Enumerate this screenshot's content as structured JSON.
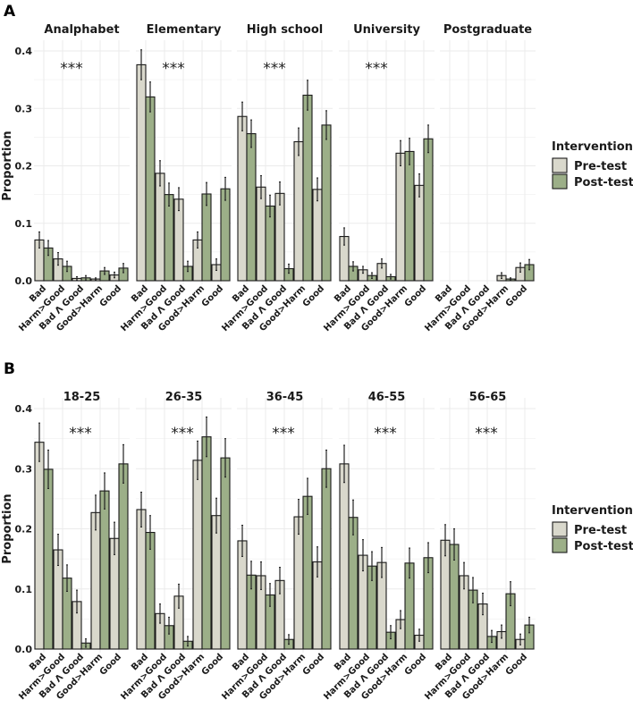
{
  "chart_data": [
    {
      "type": "bar",
      "tag": "A",
      "ylabel": "Proportion",
      "ylim": [
        0,
        0.4
      ],
      "yticks": [
        "0.0",
        "0.1",
        "0.2",
        "0.3",
        "0.4"
      ],
      "categories": [
        "Bad",
        "Harm>Good",
        "Bad Λ Good",
        "Good>Harm",
        "Good"
      ],
      "grid": true,
      "legend": {
        "title": "Intervention",
        "placement": "right",
        "entries": [
          "Pre-test",
          "Post-test"
        ]
      },
      "facets": [
        {
          "title": "Analphabet",
          "annotation": "***",
          "pre": [
            0.071,
            0.038,
            0.004,
            0.003,
            0.01
          ],
          "post": [
            0.057,
            0.025,
            0.005,
            0.017,
            0.022
          ],
          "pre_err": [
            0.014,
            0.011,
            0.003,
            0.002,
            0.005
          ],
          "post_err": [
            0.013,
            0.009,
            0.004,
            0.006,
            0.008
          ]
        },
        {
          "title": "Elementary",
          "annotation": "***",
          "pre": [
            0.376,
            0.187,
            0.142,
            0.071,
            0.028
          ],
          "post": [
            0.32,
            0.15,
            0.025,
            0.151,
            0.16
          ],
          "pre_err": [
            0.026,
            0.022,
            0.02,
            0.014,
            0.01
          ],
          "post_err": [
            0.026,
            0.02,
            0.009,
            0.02,
            0.02
          ]
        },
        {
          "title": "High school",
          "annotation": "***",
          "pre": [
            0.286,
            0.163,
            0.152,
            0.242,
            0.159
          ],
          "post": [
            0.256,
            0.13,
            0.021,
            0.323,
            0.271
          ],
          "pre_err": [
            0.025,
            0.02,
            0.02,
            0.024,
            0.02
          ],
          "post_err": [
            0.024,
            0.019,
            0.008,
            0.026,
            0.025
          ]
        },
        {
          "title": "University",
          "annotation": "***",
          "pre": [
            0.077,
            0.019,
            0.03,
            0.222,
            0.166
          ],
          "post": [
            0.025,
            0.009,
            0.007,
            0.225,
            0.247
          ],
          "pre_err": [
            0.015,
            0.006,
            0.008,
            0.022,
            0.02
          ],
          "post_err": [
            0.008,
            0.005,
            0.004,
            0.023,
            0.024
          ]
        },
        {
          "title": "Postgraduate",
          "annotation": "",
          "pre": [
            null,
            null,
            null,
            0.009,
            0.023
          ],
          "post": [
            null,
            null,
            null,
            0.003,
            0.028
          ],
          "pre_err": [
            null,
            null,
            null,
            0.005,
            0.008
          ],
          "post_err": [
            null,
            null,
            null,
            0.002,
            0.009
          ]
        }
      ]
    },
    {
      "type": "bar",
      "tag": "B",
      "ylabel": "Proportion",
      "ylim": [
        0,
        0.4
      ],
      "yticks": [
        "0.0",
        "0.1",
        "0.2",
        "0.3",
        "0.4"
      ],
      "categories": [
        "Bad",
        "Harm>Good",
        "Bad Λ Good",
        "Good>Harm",
        "Good"
      ],
      "grid": true,
      "legend": {
        "title": "Intervention",
        "placement": "right",
        "entries": [
          "Pre-test",
          "Post-test"
        ]
      },
      "facets": [
        {
          "title": "18-25",
          "annotation": "***",
          "pre": [
            0.344,
            0.165,
            0.079,
            0.227,
            0.184
          ],
          "post": [
            0.299,
            0.118,
            0.01,
            0.263,
            0.308
          ],
          "pre_err": [
            0.032,
            0.026,
            0.019,
            0.029,
            0.027
          ],
          "post_err": [
            0.032,
            0.022,
            0.007,
            0.03,
            0.032
          ]
        },
        {
          "title": "26-35",
          "annotation": "***",
          "pre": [
            0.232,
            0.059,
            0.088,
            0.314,
            0.222
          ],
          "post": [
            0.194,
            0.039,
            0.013,
            0.353,
            0.318
          ],
          "pre_err": [
            0.029,
            0.016,
            0.02,
            0.032,
            0.029
          ],
          "post_err": [
            0.028,
            0.014,
            0.008,
            0.033,
            0.032
          ]
        },
        {
          "title": "36-45",
          "annotation": "***",
          "pre": [
            0.18,
            0.122,
            0.114,
            0.22,
            0.145
          ],
          "post": [
            0.123,
            0.09,
            0.016,
            0.254,
            0.3
          ],
          "pre_err": [
            0.026,
            0.023,
            0.022,
            0.029,
            0.025
          ],
          "post_err": [
            0.023,
            0.019,
            0.008,
            0.03,
            0.031
          ]
        },
        {
          "title": "46-55",
          "annotation": "***",
          "pre": [
            0.308,
            0.156,
            0.144,
            0.049,
            0.023
          ],
          "post": [
            0.219,
            0.138,
            0.028,
            0.143,
            0.152
          ],
          "pre_err": [
            0.031,
            0.026,
            0.025,
            0.015,
            0.01
          ],
          "post_err": [
            0.029,
            0.024,
            0.011,
            0.025,
            0.025
          ]
        },
        {
          "title": "56-65",
          "annotation": "***",
          "pre": [
            0.181,
            0.122,
            0.075,
            0.029,
            0.016
          ],
          "post": [
            0.174,
            0.098,
            0.021,
            0.092,
            0.04
          ],
          "pre_err": [
            0.026,
            0.022,
            0.018,
            0.011,
            0.009
          ],
          "post_err": [
            0.026,
            0.021,
            0.01,
            0.02,
            0.013
          ]
        }
      ]
    }
  ],
  "colors": {
    "pre": "#d9d8cc",
    "post": "#9caf88",
    "outline": "#1a1a1a",
    "grid": "#ebebeb"
  }
}
